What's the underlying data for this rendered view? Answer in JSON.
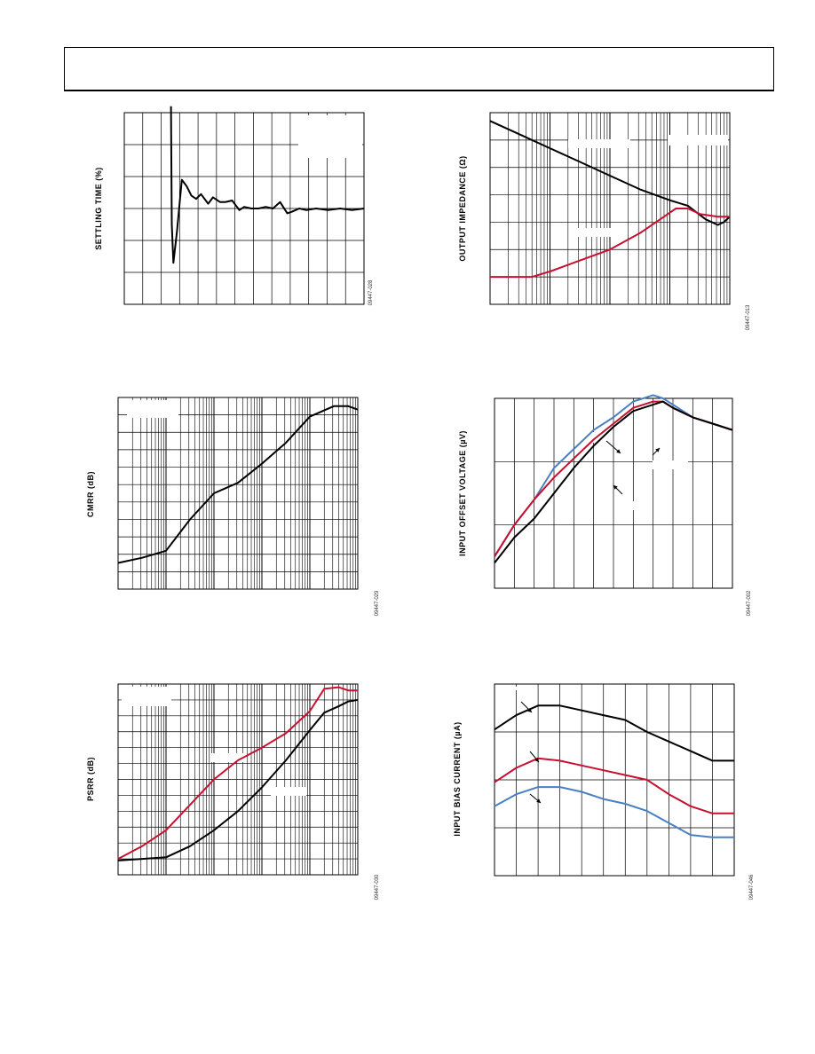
{
  "header": {
    "text": ""
  },
  "colors": {
    "black": "#000000",
    "red": "#c8102e",
    "blue": "#4a7fc1",
    "grid": "#000000"
  },
  "chart_data": [
    {
      "id": "settling",
      "type": "line",
      "ylabel": "SETTLING TIME (%)",
      "figure_code": "09447-028",
      "x_scale": "linear",
      "grid": {
        "v_lines": 13,
        "h_lines": 6
      },
      "xlim": [
        0,
        10
      ],
      "ylim": [
        0,
        6
      ],
      "series": [
        {
          "color": "black",
          "points": [
            [
              1.95,
              6.2
            ],
            [
              1.98,
              2.5
            ],
            [
              2.05,
              1.3
            ],
            [
              2.2,
              2.3
            ],
            [
              2.4,
              3.9
            ],
            [
              2.6,
              3.7
            ],
            [
              2.8,
              3.4
            ],
            [
              3.0,
              3.3
            ],
            [
              3.2,
              3.45
            ],
            [
              3.5,
              3.15
            ],
            [
              3.7,
              3.35
            ],
            [
              4.0,
              3.2
            ],
            [
              4.2,
              3.2
            ],
            [
              4.5,
              3.25
            ],
            [
              4.8,
              2.95
            ],
            [
              5.0,
              3.05
            ],
            [
              5.3,
              3.0
            ],
            [
              5.6,
              3.0
            ],
            [
              5.9,
              3.05
            ],
            [
              6.2,
              3.0
            ],
            [
              6.5,
              3.2
            ],
            [
              6.8,
              2.85
            ],
            [
              7.0,
              2.9
            ],
            [
              7.3,
              3.0
            ],
            [
              7.6,
              2.95
            ],
            [
              8.0,
              3.0
            ],
            [
              8.5,
              2.95
            ],
            [
              9.0,
              3.0
            ],
            [
              9.5,
              2.95
            ],
            [
              10,
              3.0
            ]
          ]
        }
      ]
    },
    {
      "id": "output-impedance",
      "type": "line",
      "ylabel": "OUTPUT IMPEDANCE (Ω)",
      "figure_code": "09447-013",
      "x_scale": "log",
      "grid": {
        "decades": 4,
        "h_lines": 7
      },
      "xlim": [
        0,
        4
      ],
      "ylim": [
        0,
        7
      ],
      "series": [
        {
          "color": "black",
          "points": [
            [
              0,
              6.7
            ],
            [
              0.5,
              6.2
            ],
            [
              1.0,
              5.7
            ],
            [
              1.5,
              5.2
            ],
            [
              2.0,
              4.7
            ],
            [
              2.5,
              4.2
            ],
            [
              3.0,
              3.8
            ],
            [
              3.3,
              3.6
            ],
            [
              3.6,
              3.1
            ],
            [
              3.8,
              2.9
            ],
            [
              3.9,
              3.0
            ],
            [
              4.0,
              3.2
            ]
          ]
        },
        {
          "color": "red",
          "points": [
            [
              0,
              1.0
            ],
            [
              0.3,
              1.0
            ],
            [
              0.7,
              1.0
            ],
            [
              1.0,
              1.2
            ],
            [
              1.5,
              1.6
            ],
            [
              2.0,
              2.0
            ],
            [
              2.5,
              2.6
            ],
            [
              2.9,
              3.2
            ],
            [
              3.1,
              3.5
            ],
            [
              3.3,
              3.5
            ],
            [
              3.5,
              3.3
            ],
            [
              3.8,
              3.2
            ],
            [
              4.0,
              3.2
            ]
          ]
        }
      ]
    },
    {
      "id": "cmrr",
      "type": "line",
      "ylabel": "CMRR (dB)",
      "figure_code": "09447-029",
      "x_scale": "log",
      "grid": {
        "decades": 5,
        "h_lines": 11
      },
      "xlim": [
        0,
        5
      ],
      "ylim": [
        0,
        11
      ],
      "series": [
        {
          "color": "black",
          "points": [
            [
              0,
              1.5
            ],
            [
              0.5,
              1.8
            ],
            [
              1.0,
              2.2
            ],
            [
              1.5,
              4.0
            ],
            [
              2.0,
              5.5
            ],
            [
              2.5,
              6.1
            ],
            [
              3.0,
              7.2
            ],
            [
              3.5,
              8.4
            ],
            [
              4.0,
              9.9
            ],
            [
              4.5,
              10.5
            ],
            [
              4.8,
              10.5
            ],
            [
              5.0,
              10.3
            ]
          ]
        }
      ]
    },
    {
      "id": "offset-voltage",
      "type": "line",
      "ylabel": "INPUT OFFSET VOLTAGE (µV)",
      "figure_code": "09447-002",
      "x_scale": "linear",
      "grid": {
        "v_lines": 12,
        "h_lines": 3
      },
      "xlim": [
        0,
        12
      ],
      "ylim": [
        0,
        3
      ],
      "series": [
        {
          "color": "blue",
          "points": [
            [
              0,
              0.5
            ],
            [
              1,
              1.0
            ],
            [
              2,
              1.4
            ],
            [
              3,
              1.9
            ],
            [
              4,
              2.2
            ],
            [
              5,
              2.5
            ],
            [
              6,
              2.7
            ],
            [
              7,
              2.95
            ],
            [
              8,
              3.05
            ],
            [
              8.5,
              3.0
            ],
            [
              9,
              2.9
            ],
            [
              10,
              2.7
            ],
            [
              11,
              2.6
            ],
            [
              12,
              2.5
            ]
          ]
        },
        {
          "color": "red",
          "points": [
            [
              0,
              0.5
            ],
            [
              1,
              1.0
            ],
            [
              2,
              1.4
            ],
            [
              3,
              1.75
            ],
            [
              4,
              2.05
            ],
            [
              5,
              2.35
            ],
            [
              6,
              2.6
            ],
            [
              7,
              2.85
            ],
            [
              8,
              2.95
            ],
            [
              8.5,
              2.95
            ],
            [
              9,
              2.85
            ],
            [
              10,
              2.7
            ],
            [
              11,
              2.6
            ],
            [
              12,
              2.5
            ]
          ]
        },
        {
          "color": "black",
          "points": [
            [
              0,
              0.4
            ],
            [
              1,
              0.8
            ],
            [
              2,
              1.1
            ],
            [
              3,
              1.5
            ],
            [
              4,
              1.9
            ],
            [
              5,
              2.25
            ],
            [
              6,
              2.55
            ],
            [
              7,
              2.8
            ],
            [
              8,
              2.9
            ],
            [
              8.5,
              2.95
            ],
            [
              9,
              2.85
            ],
            [
              10,
              2.7
            ],
            [
              11,
              2.6
            ],
            [
              12,
              2.5
            ]
          ]
        }
      ]
    },
    {
      "id": "psrr",
      "type": "line",
      "ylabel": "PSRR (dB)",
      "figure_code": "09447-030",
      "x_scale": "log",
      "grid": {
        "decades": 5,
        "h_lines": 12
      },
      "xlim": [
        0,
        5
      ],
      "ylim": [
        0,
        12
      ],
      "series": [
        {
          "color": "red",
          "points": [
            [
              0,
              1.0
            ],
            [
              0.5,
              1.8
            ],
            [
              1.0,
              2.8
            ],
            [
              1.5,
              4.4
            ],
            [
              2.0,
              6.0
            ],
            [
              2.5,
              7.2
            ],
            [
              3.0,
              8.0
            ],
            [
              3.5,
              8.9
            ],
            [
              4.0,
              10.3
            ],
            [
              4.3,
              11.7
            ],
            [
              4.6,
              11.8
            ],
            [
              4.8,
              11.6
            ],
            [
              5.0,
              11.6
            ]
          ]
        },
        {
          "color": "black",
          "points": [
            [
              0,
              0.9
            ],
            [
              0.5,
              1.0
            ],
            [
              1.0,
              1.1
            ],
            [
              1.5,
              1.8
            ],
            [
              2.0,
              2.8
            ],
            [
              2.5,
              4.0
            ],
            [
              3.0,
              5.5
            ],
            [
              3.5,
              7.2
            ],
            [
              4.0,
              9.1
            ],
            [
              4.3,
              10.2
            ],
            [
              4.6,
              10.6
            ],
            [
              4.8,
              10.9
            ],
            [
              5.0,
              11.0
            ]
          ]
        }
      ]
    },
    {
      "id": "bias-current",
      "type": "line",
      "ylabel": "INPUT BIAS CURRENT (µA)",
      "figure_code": "09447-046",
      "x_scale": "linear",
      "grid": {
        "v_lines": 11,
        "h_lines": 4
      },
      "xlim": [
        0,
        11
      ],
      "ylim": [
        0,
        4
      ],
      "series": [
        {
          "color": "black",
          "points": [
            [
              0,
              3.05
            ],
            [
              1,
              3.35
            ],
            [
              2,
              3.55
            ],
            [
              3,
              3.55
            ],
            [
              4,
              3.45
            ],
            [
              5,
              3.35
            ],
            [
              6,
              3.25
            ],
            [
              7,
              3.0
            ],
            [
              8,
              2.8
            ],
            [
              9,
              2.6
            ],
            [
              10,
              2.4
            ],
            [
              11,
              2.4
            ]
          ]
        },
        {
          "color": "red",
          "points": [
            [
              0,
              1.95
            ],
            [
              1,
              2.25
            ],
            [
              2,
              2.45
            ],
            [
              3,
              2.4
            ],
            [
              4,
              2.3
            ],
            [
              5,
              2.2
            ],
            [
              6,
              2.1
            ],
            [
              7,
              2.0
            ],
            [
              8,
              1.7
            ],
            [
              9,
              1.45
            ],
            [
              10,
              1.3
            ],
            [
              11,
              1.3
            ]
          ]
        },
        {
          "color": "blue",
          "points": [
            [
              0,
              1.45
            ],
            [
              1,
              1.7
            ],
            [
              2,
              1.85
            ],
            [
              3,
              1.85
            ],
            [
              4,
              1.75
            ],
            [
              5,
              1.6
            ],
            [
              6,
              1.5
            ],
            [
              7,
              1.35
            ],
            [
              8,
              1.1
            ],
            [
              9,
              0.85
            ],
            [
              10,
              0.8
            ],
            [
              11,
              0.8
            ]
          ]
        }
      ]
    }
  ]
}
